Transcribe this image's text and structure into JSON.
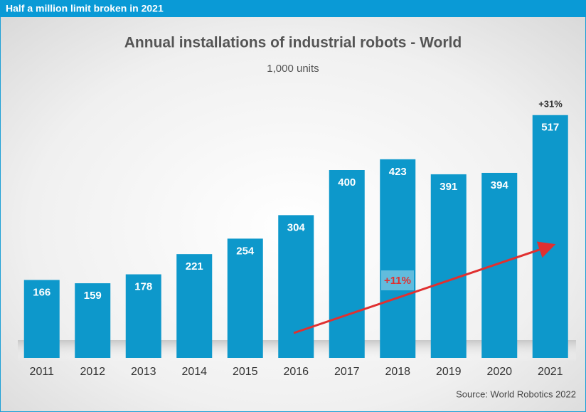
{
  "chart_data": {
    "type": "bar",
    "banner": "Half a million limit broken in 2021",
    "title": "Annual installations of industrial robots - World",
    "subtitle": "1,000 units",
    "categories": [
      "2011",
      "2012",
      "2013",
      "2014",
      "2015",
      "2016",
      "2017",
      "2018",
      "2019",
      "2020",
      "2021"
    ],
    "values": [
      166,
      159,
      178,
      221,
      254,
      304,
      400,
      423,
      391,
      394,
      517
    ],
    "color": "#0d98cb",
    "ylim": [
      0,
      600
    ],
    "annotations": [
      "+31%",
      "+11%"
    ],
    "source": "Source: World Robotics 2022"
  }
}
